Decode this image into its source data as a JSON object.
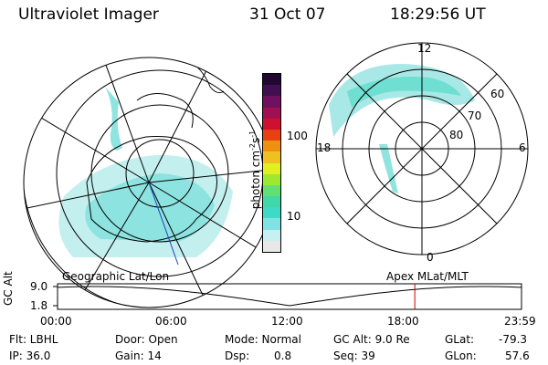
{
  "header": {
    "title": "Ultraviolet Imager",
    "date": "31 Oct 07",
    "time": "18:29:56 UT"
  },
  "left_map": {
    "caption": "Geographic Lat/Lon"
  },
  "right_map": {
    "caption": "Apex MLat/MLT",
    "mlt_labels": [
      "12",
      "18",
      "6",
      "0"
    ],
    "lat_labels": [
      "60",
      "70",
      "80"
    ]
  },
  "colorbar": {
    "unit": "photon cm",
    "unit_sup1": "-2",
    "unit_mid": "s",
    "unit_sup2": "-1",
    "ticks": [
      "100",
      "10"
    ],
    "colors": [
      "#e8e8e8",
      "#c8f0f0",
      "#7fe3e3",
      "#3fd9c8",
      "#40d8a8",
      "#60e070",
      "#a0e830",
      "#e0f020",
      "#f0c020",
      "#f09010",
      "#e84010",
      "#d01030",
      "#a01050",
      "#701060",
      "#401050",
      "#200830"
    ]
  },
  "altitude_plot": {
    "ylabel": "GC Alt",
    "yticks": [
      "9.0",
      "1.8"
    ],
    "xticks": [
      "00:00",
      "06:00",
      "12:00",
      "18:00",
      "23:59"
    ],
    "current_time_fraction": 0.77
  },
  "status": {
    "row1": {
      "filter": "Flt: LBHL",
      "door": "Door: Open",
      "mode": "Mode: Normal",
      "gc_alt": "GC Alt: 9.0 Re",
      "glat_label": "GLat:",
      "glat_value": "-79.3"
    },
    "row2": {
      "ip": "IP: 36.0",
      "gain": "Gain: 14",
      "dsp_label": "Dsp:",
      "dsp_value": "0.8",
      "seq": "Seq: 39",
      "glon_label": "GLon:",
      "glon_value": "57.6"
    }
  }
}
